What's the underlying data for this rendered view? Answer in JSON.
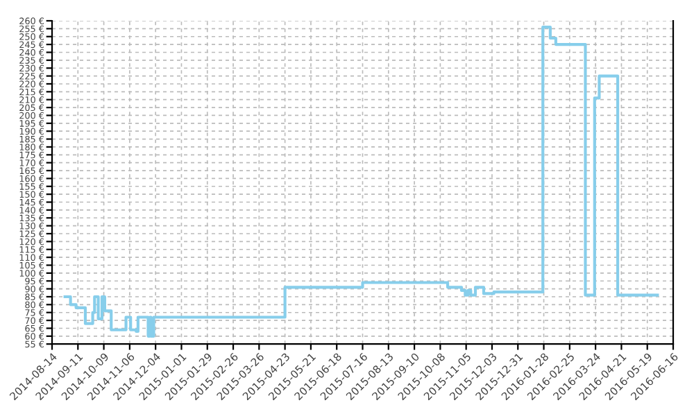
{
  "chart_data": {
    "type": "step",
    "color": "#87ceeb",
    "line_style": "solid",
    "marker": "none",
    "grid": true,
    "legend": false,
    "x": [
      "2014-08-28",
      "2014-09-03",
      "2014-09-09",
      "2014-09-19",
      "2014-09-27",
      "2014-09-29",
      "2014-10-03",
      "2014-10-07",
      "2014-10-10",
      "2014-10-17",
      "2014-11-02",
      "2014-11-07",
      "2014-11-13",
      "2014-11-15",
      "2014-11-26",
      "2014-11-28",
      "2014-11-29",
      "2014-12-02",
      "2015-04-23",
      "2015-07-16",
      "2015-10-16",
      "2015-10-31",
      "2015-11-04",
      "2015-11-07",
      "2015-11-10",
      "2015-11-15",
      "2015-11-24",
      "2015-12-05",
      "2016-01-27",
      "2016-02-04",
      "2016-02-10",
      "2016-03-13",
      "2016-03-23",
      "2016-03-28",
      "2016-04-17",
      "2016-05-30"
    ],
    "values": [
      85,
      80,
      78,
      68,
      75,
      85,
      71,
      85,
      76,
      64,
      72,
      64,
      63,
      72,
      60,
      72,
      60,
      72,
      91,
      94,
      91,
      89,
      86,
      89,
      86,
      91,
      87,
      88,
      256,
      249,
      245,
      86,
      211,
      225,
      86,
      86
    ],
    "xlim": [
      "2014-08-14",
      "2016-06-16"
    ],
    "xticks": [
      "2014-08-14",
      "2014-09-11",
      "2014-10-09",
      "2014-11-06",
      "2014-12-04",
      "2015-01-01",
      "2015-01-29",
      "2015-02-26",
      "2015-03-26",
      "2015-04-23",
      "2015-05-21",
      "2015-06-18",
      "2015-07-16",
      "2015-08-13",
      "2015-09-10",
      "2015-10-08",
      "2015-11-05",
      "2015-12-03",
      "2015-12-31",
      "2016-01-28",
      "2016-02-25",
      "2016-03-24",
      "2016-04-21",
      "2016-05-19",
      "2016-06-16"
    ],
    "ylim": [
      55,
      260
    ],
    "yticks": [
      {
        "value": 55,
        "label": "55 €"
      },
      {
        "value": 60,
        "label": "60 €"
      },
      {
        "value": 65,
        "label": "65 €"
      },
      {
        "value": 70,
        "label": "70 €"
      },
      {
        "value": 75,
        "label": "75 €"
      },
      {
        "value": 80,
        "label": "80 €"
      },
      {
        "value": 85,
        "label": "85 €"
      },
      {
        "value": 90,
        "label": "90 €"
      },
      {
        "value": 95,
        "label": "95 €"
      },
      {
        "value": 100,
        "label": "100 €"
      },
      {
        "value": 105,
        "label": "105 €"
      },
      {
        "value": 110,
        "label": "110 €"
      },
      {
        "value": 115,
        "label": "115 €"
      },
      {
        "value": 120,
        "label": "120 €"
      },
      {
        "value": 125,
        "label": "125 €"
      },
      {
        "value": 130,
        "label": "130 €"
      },
      {
        "value": 135,
        "label": "135 €"
      },
      {
        "value": 140,
        "label": "140 €"
      },
      {
        "value": 145,
        "label": "145 €"
      },
      {
        "value": 150,
        "label": "150 €"
      },
      {
        "value": 155,
        "label": "155 €"
      },
      {
        "value": 160,
        "label": "160 €"
      },
      {
        "value": 165,
        "label": "165 €"
      },
      {
        "value": 170,
        "label": "170 €"
      },
      {
        "value": 175,
        "label": "175 €"
      },
      {
        "value": 180,
        "label": "180 €"
      },
      {
        "value": 185,
        "label": "185 €"
      },
      {
        "value": 190,
        "label": "190 €"
      },
      {
        "value": 195,
        "label": "195 €"
      },
      {
        "value": 200,
        "label": "200 €"
      },
      {
        "value": 205,
        "label": "205 €"
      },
      {
        "value": 210,
        "label": "210 €"
      },
      {
        "value": 215,
        "label": "215 €"
      },
      {
        "value": 220,
        "label": "220 €"
      },
      {
        "value": 225,
        "label": "225 €"
      },
      {
        "value": 230,
        "label": "230 €"
      },
      {
        "value": 235,
        "label": "235 €"
      },
      {
        "value": 240,
        "label": "240 €"
      },
      {
        "value": 245,
        "label": "245 €"
      },
      {
        "value": 250,
        "label": "250 €"
      },
      {
        "value": 255,
        "label": "255 €"
      },
      {
        "value": 260,
        "label": "260 €"
      }
    ]
  }
}
